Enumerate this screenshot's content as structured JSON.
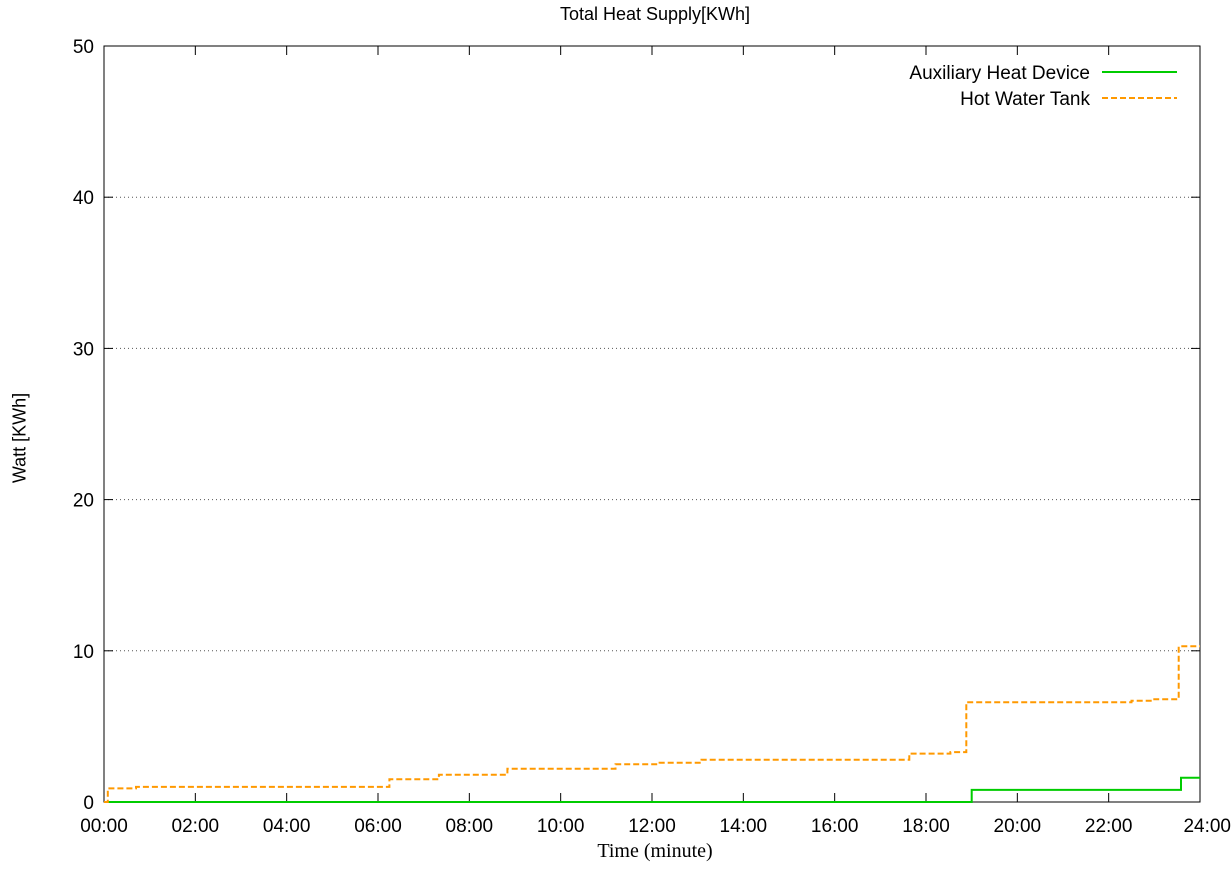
{
  "chart_data": {
    "type": "line",
    "title": "Total Heat Supply[KWh]",
    "xlabel": "Time (minute)",
    "ylabel": "Watt [KWh]",
    "xlim": [
      0,
      1440
    ],
    "ylim": [
      0,
      50
    ],
    "x_ticks": [
      "00:00",
      "02:00",
      "04:00",
      "06:00",
      "08:00",
      "10:00",
      "12:00",
      "14:00",
      "16:00",
      "18:00",
      "20:00",
      "22:00",
      "24:00"
    ],
    "y_ticks": [
      "0",
      "10",
      "20",
      "30",
      "40",
      "50"
    ],
    "grid": "horizontal dotted",
    "legend_position": "top-right",
    "series": [
      {
        "name": "Auxiliary Heat Device",
        "color": "#00cc00",
        "style": "solid",
        "x": [
          0,
          1140,
          1140,
          1415,
          1415,
          1440
        ],
        "y": [
          0,
          0,
          0.8,
          0.8,
          1.6,
          1.6
        ]
      },
      {
        "name": "Hot Water Tank",
        "color": "#ff9900",
        "style": "dashed",
        "x": [
          0,
          5,
          5,
          42,
          42,
          375,
          375,
          440,
          440,
          488,
          488,
          530,
          530,
          672,
          672,
          730,
          730,
          785,
          785,
          1058,
          1058,
          1112,
          1112,
          1133,
          1133,
          1350,
          1350,
          1380,
          1380,
          1412,
          1412,
          1440
        ],
        "y": [
          0,
          0,
          0.9,
          0.9,
          1.0,
          1.0,
          1.5,
          1.5,
          1.8,
          1.8,
          1.8,
          1.8,
          2.2,
          2.2,
          2.5,
          2.5,
          2.6,
          2.6,
          2.8,
          2.8,
          3.2,
          3.2,
          3.3,
          3.3,
          6.6,
          6.6,
          6.7,
          6.7,
          6.8,
          6.8,
          10.3,
          10.3
        ]
      }
    ]
  }
}
